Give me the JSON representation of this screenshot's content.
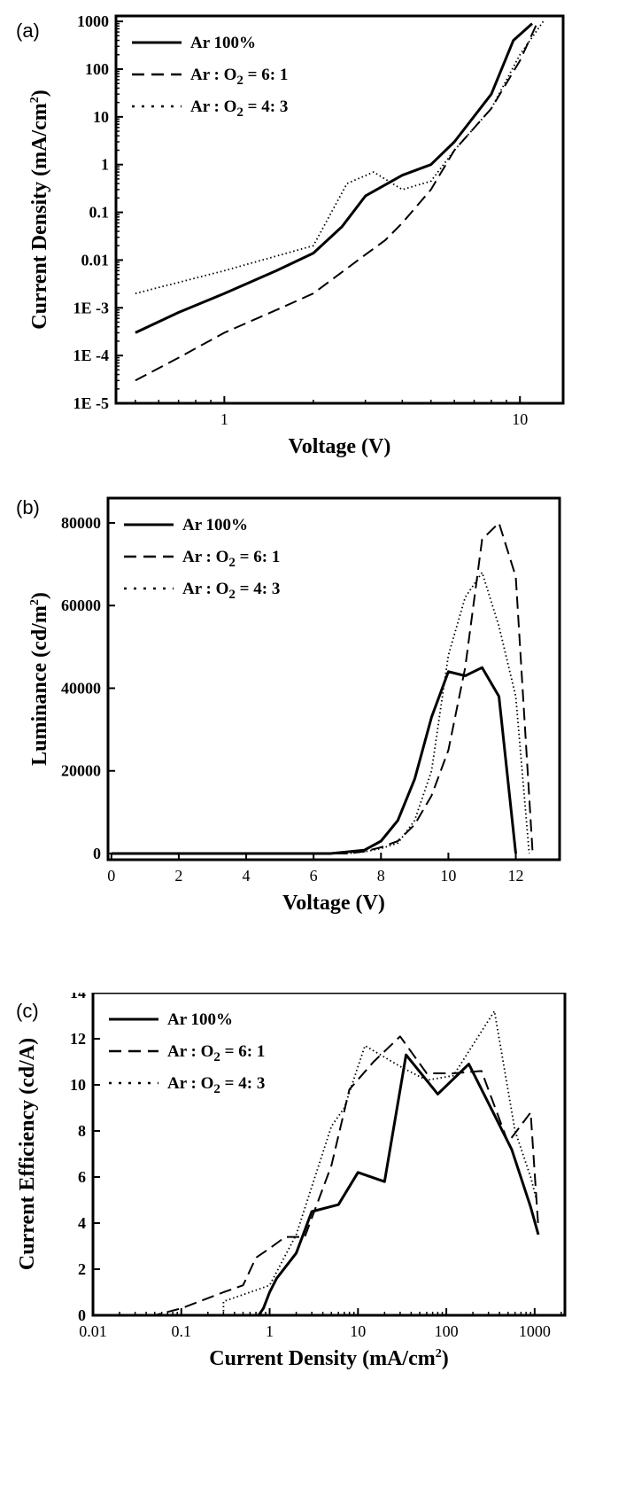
{
  "colors": {
    "line": "#000000",
    "background": "#ffffff"
  },
  "chart_data": [
    {
      "panel_label": "(a)",
      "type": "line",
      "xlabel": "Voltage (V)",
      "ylabel": "Current Density (mA/cm",
      "ylabel_sup": "2",
      "ylabel_tail": ")",
      "xscale": "log",
      "yscale": "log",
      "xlim": [
        0.43,
        14
      ],
      "ylim": [
        1e-05,
        1300
      ],
      "x_ticks": [
        1,
        10
      ],
      "x_tick_labels": [
        "1",
        "10"
      ],
      "y_ticks": [
        1e-05,
        0.0001,
        0.001,
        0.01,
        0.1,
        1,
        10,
        100,
        1000
      ],
      "y_tick_labels": [
        "1E -5",
        "1E -4",
        "1E -3",
        "0.01",
        "0.1",
        "1",
        "10",
        "100",
        "1000"
      ],
      "legend_position": "top-left",
      "series": [
        {
          "name": "Ar 100%",
          "name_parts": [
            "Ar 100%",
            "",
            ""
          ],
          "style": "solid",
          "x": [
            0.5,
            0.7,
            1.0,
            1.5,
            2.0,
            2.5,
            3.0,
            4.0,
            5.0,
            6.0,
            8.0,
            9.5,
            11.0
          ],
          "y": [
            0.0003,
            0.0008,
            0.002,
            0.006,
            0.014,
            0.05,
            0.22,
            0.6,
            1.0,
            3.0,
            30,
            400,
            900
          ]
        },
        {
          "name": "Ar : O2 = 6: 1",
          "name_parts": [
            "Ar : O",
            "2",
            " = 6: 1"
          ],
          "style": "dashed",
          "x": [
            0.5,
            0.7,
            1.0,
            1.5,
            2.0,
            3.0,
            3.5,
            4.0,
            5.0,
            6.0,
            8.0,
            10.0,
            11.5
          ],
          "y": [
            3e-05,
            9e-05,
            0.0003,
            0.0009,
            0.002,
            0.013,
            0.026,
            0.06,
            0.3,
            2.0,
            15,
            150,
            1000
          ]
        },
        {
          "name": "Ar : O2 = 4: 3",
          "name_parts": [
            "Ar : O",
            "2",
            " = 4: 3"
          ],
          "style": "dotted",
          "x": [
            0.5,
            1.0,
            2.0,
            2.6,
            3.2,
            4.0,
            5.0,
            6.0,
            8.0,
            10.0,
            12.0
          ],
          "y": [
            0.002,
            0.006,
            0.02,
            0.4,
            0.7,
            0.3,
            0.45,
            2.0,
            15,
            200,
            1000
          ]
        }
      ]
    },
    {
      "panel_label": "(b)",
      "type": "line",
      "xlabel": "Voltage (V)",
      "ylabel": "Luminance (cd/m",
      "ylabel_sup": "2",
      "ylabel_tail": ")",
      "xscale": "linear",
      "yscale": "linear",
      "xlim": [
        -0.1,
        13.3
      ],
      "ylim": [
        -1500,
        86000
      ],
      "x_ticks": [
        0,
        2,
        4,
        6,
        8,
        10,
        12
      ],
      "x_tick_labels": [
        "0",
        "2",
        "4",
        "6",
        "8",
        "10",
        "12"
      ],
      "y_ticks": [
        0,
        20000,
        40000,
        60000,
        80000
      ],
      "y_tick_labels": [
        "0",
        "20000",
        "40000",
        "60000",
        "80000"
      ],
      "legend_position": "top-left",
      "series": [
        {
          "name": "Ar 100%",
          "name_parts": [
            "Ar 100%",
            "",
            ""
          ],
          "style": "solid",
          "x": [
            0,
            6.5,
            7.5,
            8.0,
            8.5,
            9.0,
            9.5,
            10.0,
            10.5,
            11.0,
            11.5,
            12.0
          ],
          "y": [
            0,
            0,
            800,
            3000,
            8000,
            18000,
            33000,
            44000,
            43000,
            45000,
            38000,
            0
          ]
        },
        {
          "name": "Ar : O2 = 6: 1",
          "name_parts": [
            "Ar : O",
            "2",
            " = 6: 1"
          ],
          "style": "dashed",
          "x": [
            0,
            7.0,
            7.5,
            8.0,
            8.5,
            9.0,
            9.5,
            10.0,
            10.5,
            11.0,
            11.5,
            12.0,
            12.5
          ],
          "y": [
            0,
            0,
            500,
            1500,
            3000,
            7000,
            14000,
            25000,
            45000,
            76000,
            80000,
            67000,
            0
          ]
        },
        {
          "name": "Ar : O2 = 4: 3",
          "name_parts": [
            "Ar : O",
            "2",
            " = 4: 3"
          ],
          "style": "dotted",
          "x": [
            0,
            7.0,
            7.5,
            8.0,
            8.5,
            9.0,
            9.5,
            10.0,
            10.5,
            11.0,
            11.5,
            12.0,
            12.4
          ],
          "y": [
            0,
            0,
            400,
            1200,
            2500,
            8000,
            20000,
            48000,
            62000,
            68000,
            55000,
            38000,
            0
          ]
        }
      ]
    },
    {
      "panel_label": "(c)",
      "type": "line",
      "xlabel": "Current Density (mA/cm",
      "xlabel_sup": "2",
      "xlabel_tail": ")",
      "ylabel": "Current Efficiency (cd/A)",
      "xscale": "log",
      "yscale": "linear",
      "xlim": [
        0.01,
        2200
      ],
      "ylim": [
        0,
        14
      ],
      "x_ticks": [
        0.01,
        0.1,
        1,
        10,
        100,
        1000
      ],
      "x_tick_labels": [
        "0.01",
        "0.1",
        "1",
        "10",
        "100",
        "1000"
      ],
      "y_ticks": [
        0,
        2,
        4,
        6,
        8,
        10,
        12,
        14
      ],
      "y_tick_labels": [
        "0",
        "2",
        "4",
        "6",
        "8",
        "10",
        "12",
        "14"
      ],
      "legend_position": "top-left",
      "series": [
        {
          "name": "Ar 100%",
          "name_parts": [
            "Ar 100%",
            "",
            ""
          ],
          "style": "solid",
          "x": [
            0.01,
            0.75,
            0.85,
            1.0,
            1.2,
            2.0,
            3.0,
            6.0,
            10.0,
            20.0,
            35.0,
            80.0,
            180,
            550,
            900,
            1100
          ],
          "y": [
            0,
            0,
            0.3,
            1.0,
            1.6,
            2.7,
            4.5,
            4.8,
            6.2,
            5.8,
            11.3,
            9.6,
            10.9,
            7.2,
            4.7,
            3.5
          ]
        },
        {
          "name": "Ar : O2 = 6: 1",
          "name_parts": [
            "Ar : O",
            "2",
            " = 6: 1"
          ],
          "style": "dashed",
          "x": [
            0.01,
            0.05,
            0.1,
            0.3,
            0.5,
            0.7,
            1.0,
            1.5,
            2.5,
            5.0,
            8.0,
            15.0,
            30.0,
            60.0,
            120,
            250,
            500,
            900,
            1100
          ],
          "y": [
            0,
            0,
            0.3,
            1.0,
            1.3,
            2.5,
            2.9,
            3.4,
            3.4,
            6.5,
            9.8,
            11.0,
            12.1,
            10.5,
            10.5,
            10.6,
            7.5,
            8.8,
            3.8
          ]
        },
        {
          "name": "Ar : O2 = 4: 3",
          "name_parts": [
            "Ar : O",
            "2",
            " = 4: 3"
          ],
          "style": "dotted",
          "x": [
            0.3,
            0.3,
            0.6,
            1.0,
            2.0,
            5.0,
            7.0,
            12.0,
            30.0,
            60.0,
            120,
            350,
            600,
            900,
            1050
          ],
          "y": [
            0,
            0.6,
            1.0,
            1.3,
            3.5,
            8.2,
            9.0,
            11.7,
            10.8,
            10.2,
            10.4,
            13.2,
            8.0,
            6.0,
            5.0
          ]
        }
      ]
    }
  ]
}
